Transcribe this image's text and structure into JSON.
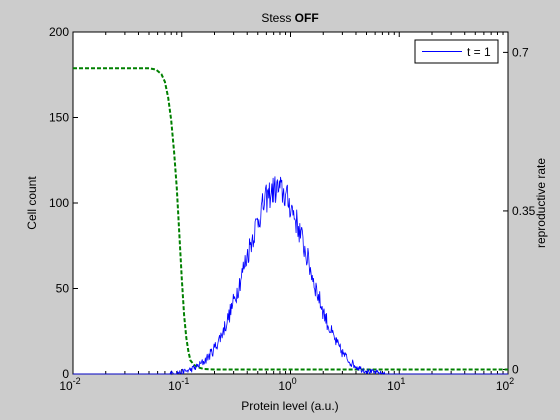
{
  "chart_data": {
    "type": "line",
    "title_main": "Stess ",
    "title_bold": "OFF",
    "xlabel": "Protein level (a.u.)",
    "ylabel": "Cell count",
    "y2label": "reproductive rate",
    "xscale": "log",
    "xlim": [
      0.01,
      100
    ],
    "ylim": [
      0,
      200
    ],
    "y2lim": [
      -0.01,
      0.745
    ],
    "x_ticks": [
      {
        "v": 0.01,
        "base": "10",
        "exp": "-2"
      },
      {
        "v": 0.1,
        "base": "10",
        "exp": "-1"
      },
      {
        "v": 1,
        "base": "10",
        "exp": "0"
      },
      {
        "v": 10,
        "base": "10",
        "exp": "1"
      },
      {
        "v": 100,
        "base": "10",
        "exp": "2"
      }
    ],
    "y_ticks": [
      0,
      50,
      100,
      150,
      200
    ],
    "y2_ticks": [
      {
        "v": 0,
        "label": "0"
      },
      {
        "v": 0.35,
        "label": "0.35"
      },
      {
        "v": 0.7,
        "label": "0.7"
      }
    ],
    "legend": {
      "label": "t = 1",
      "placement": "top-right"
    },
    "series": [
      {
        "name": "t = 1",
        "axis": "left",
        "color": "#0000ff",
        "style": "solid",
        "peak_x": 0.75,
        "peak_y": 108,
        "log_sigma": 0.29,
        "noise_scale": 9
      },
      {
        "axis": "right",
        "color": "#008000",
        "style": "dashed",
        "x": [
          0.01,
          0.05,
          0.058,
          0.065,
          0.07,
          0.075,
          0.08,
          0.085,
          0.09,
          0.094,
          0.1,
          0.105,
          0.11,
          0.115,
          0.12,
          0.13,
          0.14,
          0.16,
          0.2,
          1,
          10,
          100
        ],
        "y": [
          0.665,
          0.665,
          0.662,
          0.652,
          0.635,
          0.6,
          0.55,
          0.48,
          0.4,
          0.32,
          0.2,
          0.12,
          0.07,
          0.04,
          0.02,
          0.01,
          0.005,
          0.001,
          0.0,
          0.0,
          0.0,
          0.0
        ]
      }
    ]
  }
}
